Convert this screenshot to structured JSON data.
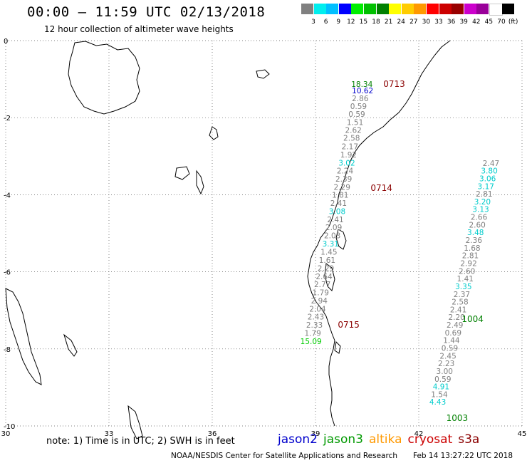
{
  "header": {
    "title": "00:00 – 11:59 UTC 02/13/2018",
    "subtitle": "12 hour collection of altimeter wave heights"
  },
  "legend": {
    "unit": "(ft)",
    "colors": [
      "#808080",
      "#00eeee",
      "#00bfff",
      "#0000ff",
      "#00ee00",
      "#00c000",
      "#008000",
      "#ffff00",
      "#ffcc00",
      "#ff9900",
      "#ff0000",
      "#cc0000",
      "#990000",
      "#cc00cc",
      "#990099",
      "#ffffff",
      "#000000"
    ],
    "labels": [
      "3",
      "6",
      "9",
      "12",
      "15",
      "18",
      "21",
      "24",
      "27",
      "30",
      "33",
      "36",
      "39",
      "42",
      "45",
      "70"
    ]
  },
  "map": {
    "lon_range": [
      30,
      45
    ],
    "lat_range": [
      -10,
      0
    ],
    "x_ticks": [
      "30",
      "33",
      "36",
      "39",
      "42",
      "45"
    ],
    "y_ticks": [
      "0",
      "-2",
      "-4",
      "-6",
      "-8",
      "-10"
    ],
    "grid": "dotted"
  },
  "passes": [
    {
      "id": "0713",
      "color": "#8b0000",
      "anchor": [
        40.97,
        -1.2
      ]
    },
    {
      "id": "0714",
      "color": "#8b0000",
      "anchor": [
        40.6,
        -3.9
      ]
    },
    {
      "id": "0715",
      "color": "#8b0000",
      "anchor": [
        39.65,
        -7.45
      ]
    },
    {
      "id": "1004",
      "color": "#008000",
      "anchor": [
        43.25,
        -7.3
      ]
    },
    {
      "id": "1003",
      "color": "#008000",
      "anchor": [
        42.8,
        -9.87
      ]
    }
  ],
  "tracks": [
    {
      "series": "track-1",
      "points": [
        {
          "lon": 40.35,
          "lat": -1.2,
          "v": "18.34",
          "c": "#008000"
        },
        {
          "lon": 40.37,
          "lat": -1.37,
          "v": "10.62",
          "c": "#0000cc"
        },
        {
          "lon": 40.3,
          "lat": -1.57,
          "v": "2.86",
          "c": "#808080"
        },
        {
          "lon": 40.25,
          "lat": -1.77,
          "v": "0.59",
          "c": "#808080"
        },
        {
          "lon": 40.2,
          "lat": -1.98,
          "v": "0.59",
          "c": "#808080"
        },
        {
          "lon": 40.15,
          "lat": -2.19,
          "v": "1.51",
          "c": "#808080"
        },
        {
          "lon": 40.1,
          "lat": -2.39,
          "v": "2.62",
          "c": "#808080"
        },
        {
          "lon": 40.05,
          "lat": -2.6,
          "v": "2.58",
          "c": "#808080"
        },
        {
          "lon": 40.0,
          "lat": -2.82,
          "v": "2.17",
          "c": "#808080"
        },
        {
          "lon": 39.96,
          "lat": -3.03,
          "v": "1.92",
          "c": "#808080"
        },
        {
          "lon": 39.91,
          "lat": -3.24,
          "v": "3.02",
          "c": "#00cccc"
        },
        {
          "lon": 39.86,
          "lat": -3.45,
          "v": "2.24",
          "c": "#808080"
        },
        {
          "lon": 39.82,
          "lat": -3.66,
          "v": "2.39",
          "c": "#808080"
        },
        {
          "lon": 39.77,
          "lat": -3.87,
          "v": "2.29",
          "c": "#808080"
        },
        {
          "lon": 39.72,
          "lat": -4.08,
          "v": "1.81",
          "c": "#808080"
        },
        {
          "lon": 39.67,
          "lat": -4.29,
          "v": "2.41",
          "c": "#808080"
        },
        {
          "lon": 39.63,
          "lat": -4.5,
          "v": "3.08",
          "c": "#00cccc"
        },
        {
          "lon": 39.58,
          "lat": -4.71,
          "v": "2.41",
          "c": "#808080"
        },
        {
          "lon": 39.53,
          "lat": -4.92,
          "v": "2.09",
          "c": "#808080"
        },
        {
          "lon": 39.49,
          "lat": -5.13,
          "v": "2.03",
          "c": "#808080"
        },
        {
          "lon": 39.44,
          "lat": -5.34,
          "v": "3.31",
          "c": "#00cccc"
        },
        {
          "lon": 39.39,
          "lat": -5.55,
          "v": "1.45",
          "c": "#808080"
        },
        {
          "lon": 39.34,
          "lat": -5.77,
          "v": "1.61",
          "c": "#808080"
        },
        {
          "lon": 39.3,
          "lat": -5.98,
          "v": "2.29",
          "c": "#808080"
        },
        {
          "lon": 39.25,
          "lat": -6.19,
          "v": "2.64",
          "c": "#808080"
        },
        {
          "lon": 39.2,
          "lat": -6.4,
          "v": "2.77",
          "c": "#808080"
        },
        {
          "lon": 39.15,
          "lat": -6.61,
          "v": "1.79",
          "c": "#808080"
        },
        {
          "lon": 39.11,
          "lat": -6.82,
          "v": "2.94",
          "c": "#808080"
        },
        {
          "lon": 39.06,
          "lat": -7.03,
          "v": "2.04",
          "c": "#808080"
        },
        {
          "lon": 39.01,
          "lat": -7.24,
          "v": "2.43",
          "c": "#808080"
        },
        {
          "lon": 38.97,
          "lat": -7.45,
          "v": "2.33",
          "c": "#808080"
        },
        {
          "lon": 38.92,
          "lat": -7.66,
          "v": "1.79",
          "c": "#808080"
        },
        {
          "lon": 38.87,
          "lat": -7.87,
          "v": "15.09",
          "c": "#00cc00"
        }
      ]
    },
    {
      "series": "track-2",
      "points": [
        {
          "lon": 44.1,
          "lat": -3.25,
          "v": "2.47",
          "c": "#808080"
        },
        {
          "lon": 44.05,
          "lat": -3.45,
          "v": "3.80",
          "c": "#00cccc"
        },
        {
          "lon": 44.0,
          "lat": -3.65,
          "v": "3.06",
          "c": "#00cccc"
        },
        {
          "lon": 43.95,
          "lat": -3.85,
          "v": "3.17",
          "c": "#00cccc"
        },
        {
          "lon": 43.9,
          "lat": -4.05,
          "v": "2.81",
          "c": "#808080"
        },
        {
          "lon": 43.85,
          "lat": -4.25,
          "v": "3.20",
          "c": "#00cccc"
        },
        {
          "lon": 43.8,
          "lat": -4.45,
          "v": "3.13",
          "c": "#00cccc"
        },
        {
          "lon": 43.75,
          "lat": -4.65,
          "v": "2.66",
          "c": "#808080"
        },
        {
          "lon": 43.7,
          "lat": -4.85,
          "v": "2.60",
          "c": "#808080"
        },
        {
          "lon": 43.65,
          "lat": -5.05,
          "v": "3.48",
          "c": "#00cccc"
        },
        {
          "lon": 43.6,
          "lat": -5.25,
          "v": "2.36",
          "c": "#808080"
        },
        {
          "lon": 43.55,
          "lat": -5.45,
          "v": "1.68",
          "c": "#808080"
        },
        {
          "lon": 43.5,
          "lat": -5.65,
          "v": "2.81",
          "c": "#808080"
        },
        {
          "lon": 43.45,
          "lat": -5.85,
          "v": "2.92",
          "c": "#808080"
        },
        {
          "lon": 43.4,
          "lat": -6.05,
          "v": "2.60",
          "c": "#808080"
        },
        {
          "lon": 43.35,
          "lat": -6.25,
          "v": "1.41",
          "c": "#808080"
        },
        {
          "lon": 43.3,
          "lat": -6.45,
          "v": "3.35",
          "c": "#00cccc"
        },
        {
          "lon": 43.25,
          "lat": -6.65,
          "v": "2.37",
          "c": "#808080"
        },
        {
          "lon": 43.2,
          "lat": -6.85,
          "v": "2.58",
          "c": "#808080"
        },
        {
          "lon": 43.15,
          "lat": -7.05,
          "v": "2.41",
          "c": "#808080"
        },
        {
          "lon": 43.1,
          "lat": -7.25,
          "v": "2.20",
          "c": "#808080"
        },
        {
          "lon": 43.05,
          "lat": -7.45,
          "v": "2.49",
          "c": "#808080"
        },
        {
          "lon": 43.0,
          "lat": -7.65,
          "v": "0.69",
          "c": "#808080"
        },
        {
          "lon": 42.95,
          "lat": -7.85,
          "v": "1.44",
          "c": "#808080"
        },
        {
          "lon": 42.9,
          "lat": -8.05,
          "v": "0.59",
          "c": "#808080"
        },
        {
          "lon": 42.85,
          "lat": -8.25,
          "v": "2.45",
          "c": "#808080"
        },
        {
          "lon": 42.8,
          "lat": -8.45,
          "v": "2.23",
          "c": "#808080"
        },
        {
          "lon": 42.75,
          "lat": -8.65,
          "v": "3.00",
          "c": "#808080"
        },
        {
          "lon": 42.7,
          "lat": -8.85,
          "v": "0.59",
          "c": "#808080"
        },
        {
          "lon": 42.65,
          "lat": -9.05,
          "v": "4.91",
          "c": "#00cccc"
        },
        {
          "lon": 42.6,
          "lat": -9.25,
          "v": "1.54",
          "c": "#808080"
        },
        {
          "lon": 42.55,
          "lat": -9.45,
          "v": "4.43",
          "c": "#00cccc"
        }
      ]
    }
  ],
  "footer": {
    "note": "note: 1) Time is in UTC; 2) SWH is in feet",
    "satellites": [
      {
        "name": "jason2",
        "color": "#0000cc"
      },
      {
        "name": "jason3",
        "color": "#009900"
      },
      {
        "name": "altika",
        "color": "#ff9900"
      },
      {
        "name": "cryosat",
        "color": "#cc0000"
      },
      {
        "name": "s3a",
        "color": "#8b0000"
      }
    ],
    "credit": "NOAA/NESDIS Center for Satellite Applications and Research",
    "timestamp": "Feb 14 13:27:22 UTC 2018"
  }
}
